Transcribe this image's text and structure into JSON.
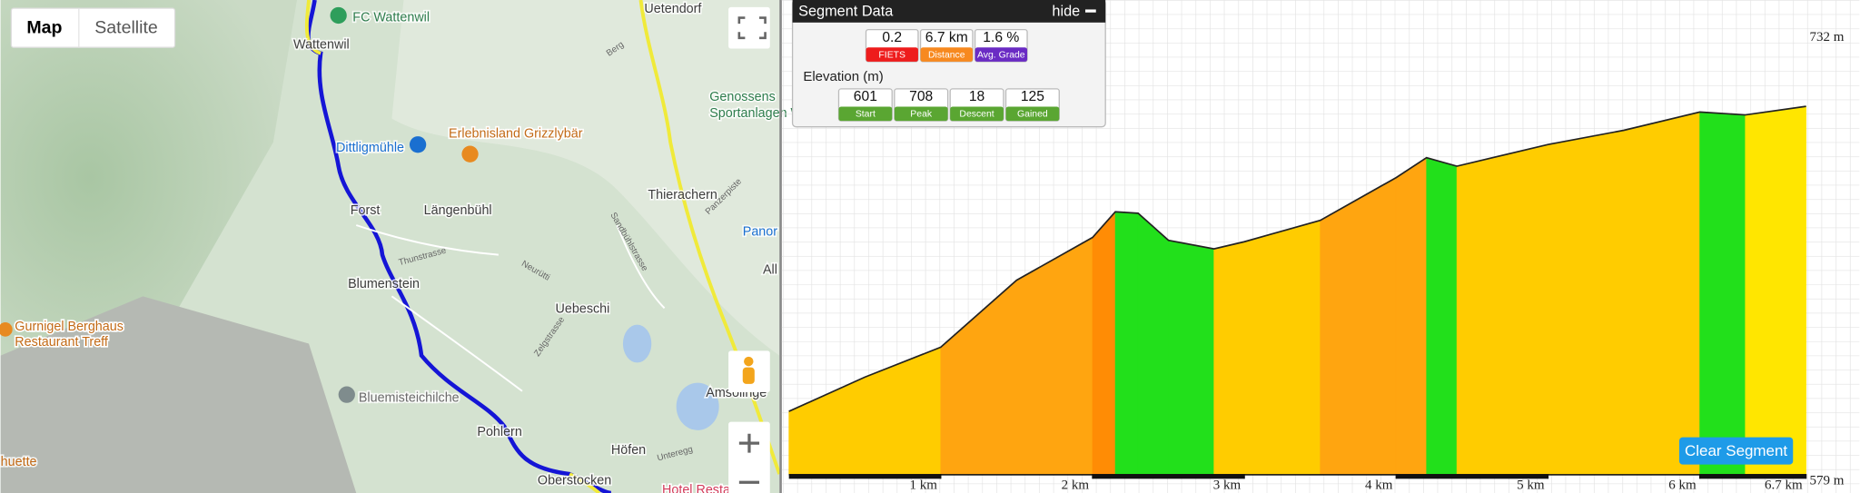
{
  "map": {
    "buttons": [
      "Map",
      "Satellite"
    ],
    "labels": [
      "FC Wattenwil",
      "Uetendorf",
      "Wattenwil",
      "Genossens",
      "Sportanlagen Wa",
      "Dittligmühle",
      "Thierachern",
      "Forst",
      "Längenbühl",
      "Panor",
      "All",
      "Blumenstein",
      "Uebeschi",
      "Amsolinge",
      "Bluemisteichilche",
      "Pohlern",
      "Höfen",
      "huette",
      "Oberstocken"
    ],
    "poi_labels": [
      "Erlebnisland Grizzlybär",
      "Gurnigel Berghaus",
      "Restaurant Treff",
      "Hotel Resta"
    ],
    "road_labels": [
      "Berg",
      "Thunstrasse",
      "Neurütti",
      "Sandbühlstrasse",
      "Panzerpiste",
      "Zelgstrasse",
      "Unteregg"
    ]
  },
  "panel": {
    "title": "Segment Data",
    "hide": "hide",
    "stats": [
      {
        "value": "0.2",
        "label": "FIETS"
      },
      {
        "value": "6.7 km",
        "label": "Distance"
      },
      {
        "value": "1.6 %",
        "label": "Avg. Grade"
      }
    ],
    "elevation_title": "Elevation (m)",
    "elevation_stats": [
      {
        "value": "601",
        "label": "Start"
      },
      {
        "value": "708",
        "label": "Peak"
      },
      {
        "value": "18",
        "label": "Descent"
      },
      {
        "value": "125",
        "label": "Gained"
      }
    ]
  },
  "profile": {
    "km": [
      0,
      0.5,
      1,
      1.5,
      2,
      2.15,
      2.3,
      2.5,
      2.8,
      3,
      3.5,
      4,
      4.2,
      4.4,
      5,
      5.5,
      6,
      6.3,
      6.7
    ],
    "elevation": [
      601,
      613,
      623.5,
      647,
      662,
      671,
      670.5,
      661,
      658,
      660.5,
      668,
      683,
      690,
      687,
      694.6,
      699.6,
      706,
      705,
      708
    ],
    "xlim": [
      0,
      6.7
    ],
    "ylim": [
      579,
      732
    ],
    "xticks": [
      {
        "value": 1,
        "label": "1 km"
      },
      {
        "value": 2,
        "label": "2 km"
      },
      {
        "value": 3,
        "label": "3 km"
      },
      {
        "value": 4,
        "label": "4 km"
      },
      {
        "value": 5,
        "label": "5 km"
      },
      {
        "value": 6,
        "label": "6 km"
      },
      {
        "value": 6.7,
        "label": "6.7 km"
      }
    ],
    "yticks": [
      {
        "value": 732,
        "label": "732 m"
      },
      {
        "value": 579,
        "label": "579 m"
      }
    ],
    "button": "Clear Segment"
  }
}
